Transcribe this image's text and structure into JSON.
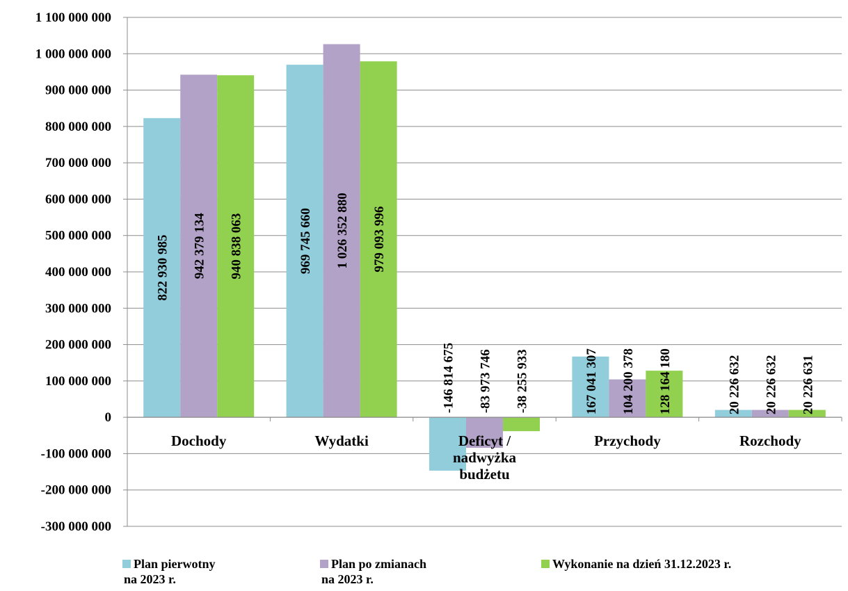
{
  "chart_data": {
    "type": "bar",
    "categories": [
      [
        "Dochody"
      ],
      [
        "Wydatki"
      ],
      [
        "Deficyt /",
        "nadwyżka",
        "budżetu"
      ],
      [
        "Przychody"
      ],
      [
        "Rozchody"
      ]
    ],
    "ylim": [
      -300000000,
      1100000000
    ],
    "ytick_step": 100000000,
    "yticks": [
      "1 100 000 000",
      "1 000 000 000",
      "900 000 000",
      "800 000 000",
      "700 000 000",
      "600 000 000",
      "500 000 000",
      "400 000 000",
      "300 000 000",
      "200 000 000",
      "100 000 000",
      "0",
      "-100 000 000",
      "-200 000 000",
      "-300 000 000"
    ],
    "grid": true,
    "legend_position": "bottom",
    "series": [
      {
        "name": [
          "Plan pierwotny",
          "na 2023 r."
        ],
        "color": "#92CDDC",
        "values": [
          822930985,
          969745660,
          -146814675,
          167041307,
          20226632
        ],
        "labels": [
          "822 930 985",
          "969 745 660",
          "-146 814 675",
          "167 041 307",
          "20 226 632"
        ]
      },
      {
        "name": [
          "Plan po zmianach",
          "na 2023 r."
        ],
        "color": "#B3A2C7",
        "values": [
          942379134,
          1026352880,
          -83973746,
          104200378,
          20226632
        ],
        "labels": [
          "942 379 134",
          "1 026 352 880",
          "-83 973 746",
          "104 200 378",
          "20 226 632"
        ]
      },
      {
        "name": [
          "Wykonanie na dzień 31.12.2023 r."
        ],
        "color": "#92D050",
        "values": [
          940838063,
          979093996,
          -38255933,
          128164180,
          20226631
        ],
        "labels": [
          "940 838 063",
          "979 093 996",
          "-38 255 933",
          "128 164 180",
          "20 226 631"
        ]
      }
    ]
  }
}
